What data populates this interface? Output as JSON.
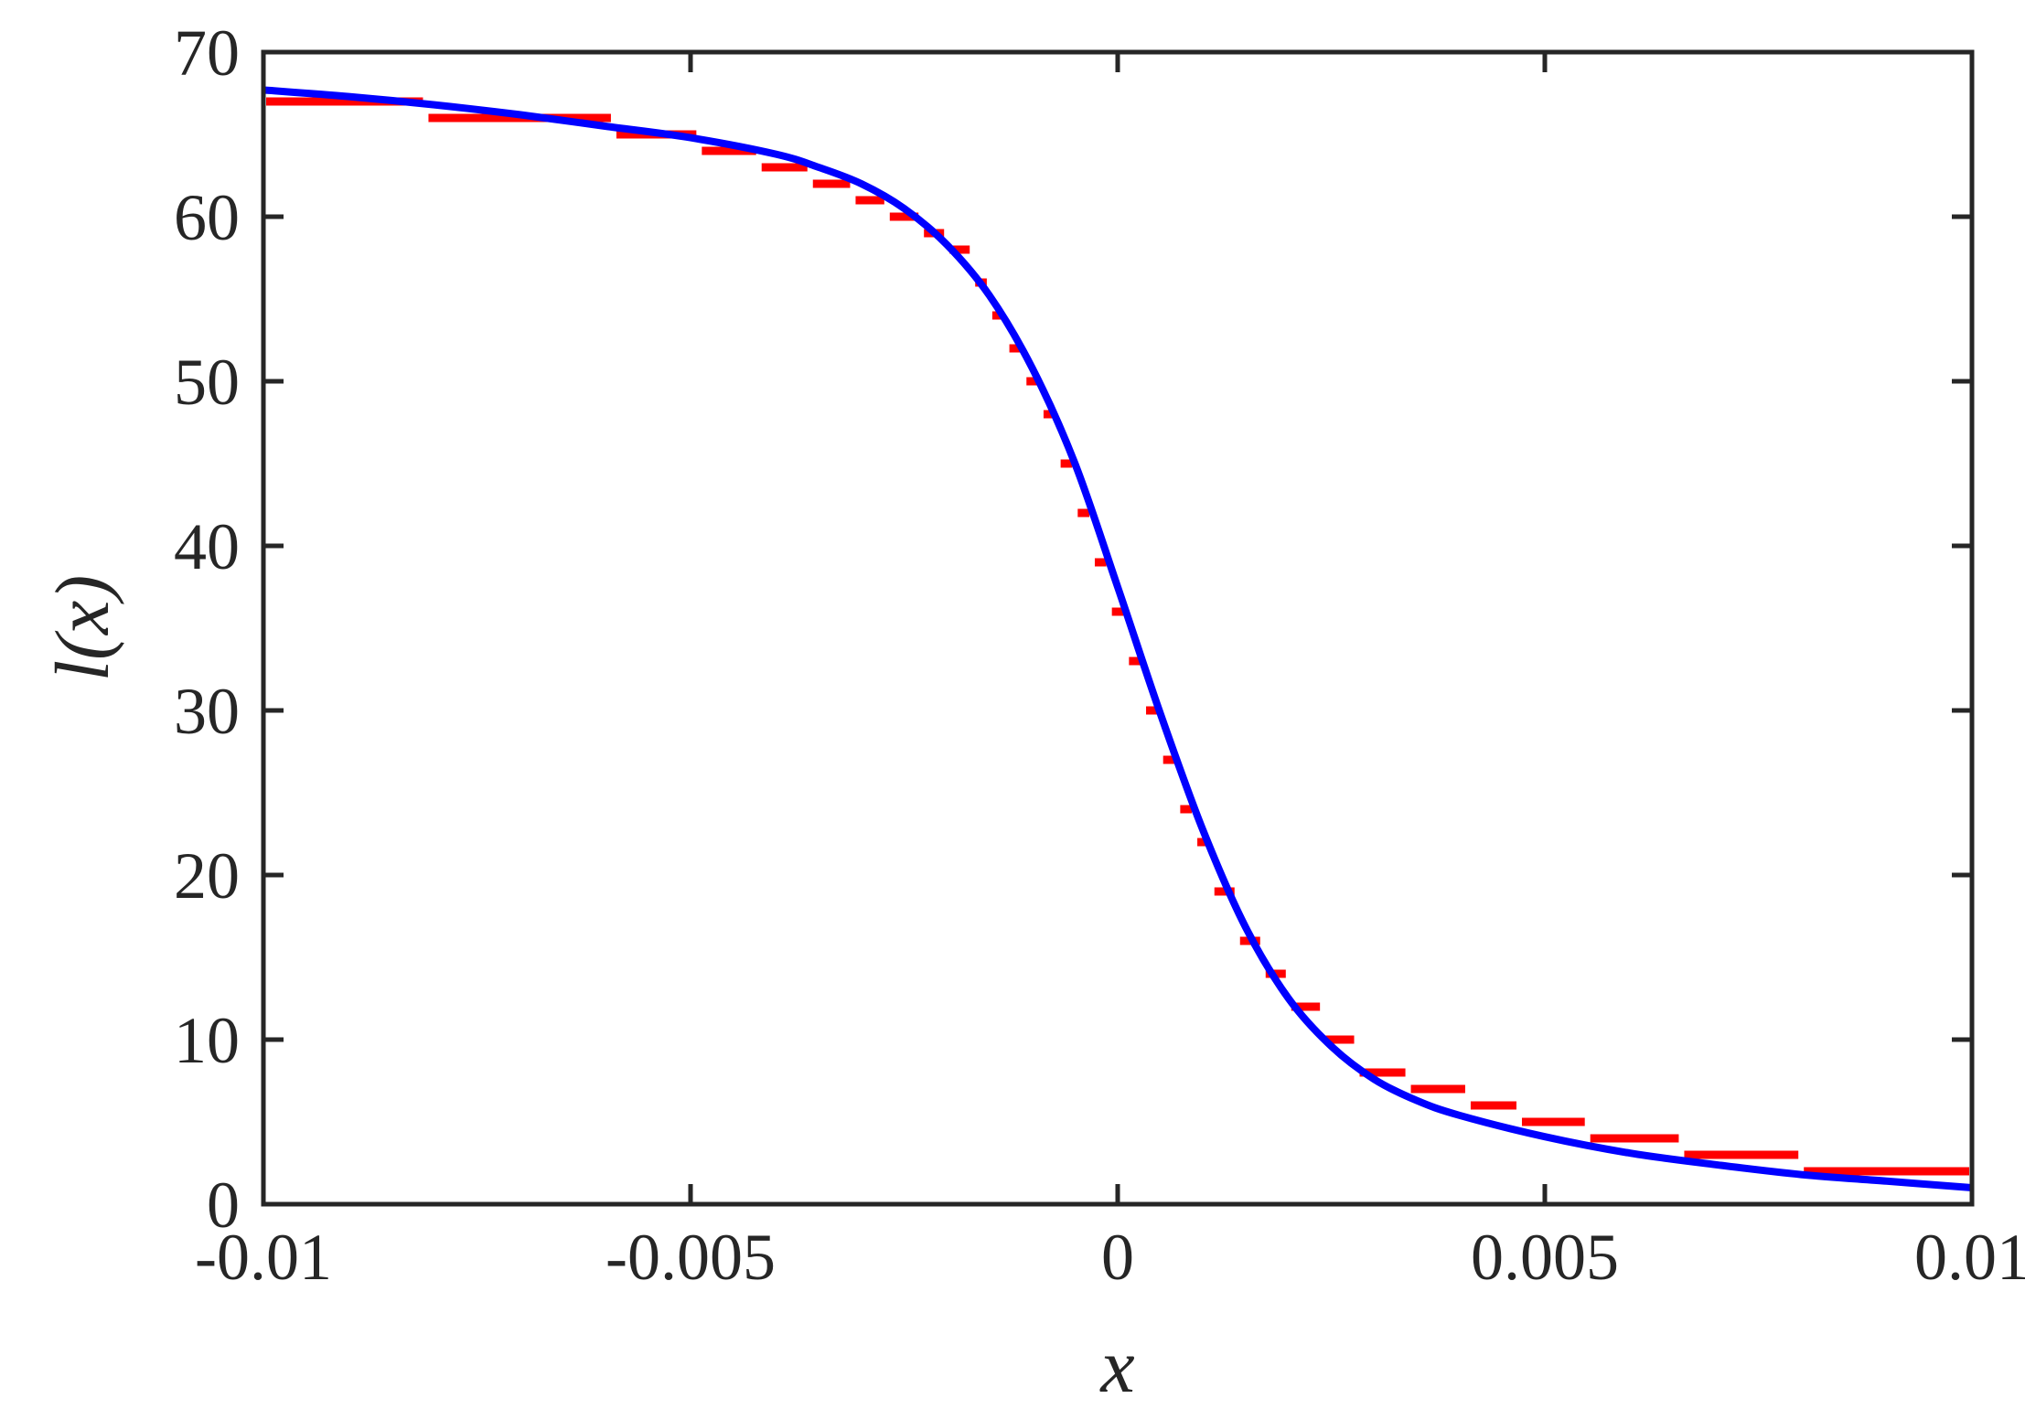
{
  "chart_data": {
    "type": "line",
    "title": "",
    "xlabel": "x",
    "ylabel": "l(x)",
    "xlim": [
      -0.01,
      0.01
    ],
    "ylim": [
      0,
      70
    ],
    "grid": false,
    "legend": "none",
    "x_ticks": [
      {
        "value": -0.01,
        "label": "-0.01"
      },
      {
        "value": -0.005,
        "label": "-0.005"
      },
      {
        "value": 0,
        "label": "0"
      },
      {
        "value": 0.005,
        "label": "0.005"
      },
      {
        "value": 0.01,
        "label": "0.01"
      }
    ],
    "y_ticks": [
      {
        "value": 0,
        "label": "0"
      },
      {
        "value": 10,
        "label": "10"
      },
      {
        "value": 20,
        "label": "20"
      },
      {
        "value": 30,
        "label": "30"
      },
      {
        "value": 40,
        "label": "40"
      },
      {
        "value": 50,
        "label": "50"
      },
      {
        "value": 60,
        "label": "60"
      },
      {
        "value": 70,
        "label": "70"
      }
    ],
    "series": [
      {
        "style": "step-dashes",
        "color": "#ff0000",
        "x": [
          -0.01,
          -0.0081,
          -0.0059,
          -0.0049,
          -0.0042,
          -0.0036,
          -0.0031,
          -0.0027,
          -0.0023,
          -0.002,
          -0.0017,
          -0.0015,
          -0.0013,
          -0.0011,
          -0.0009,
          -0.0007,
          -0.0005,
          -0.0003,
          -0.0001,
          0.0001,
          0.0003,
          0.0005,
          0.0007,
          0.0009,
          0.0011,
          0.0014,
          0.0017,
          0.002,
          0.0024,
          0.0028,
          0.0034,
          0.0041,
          0.0047,
          0.0055,
          0.0066,
          0.008,
          0.01
        ],
        "y": [
          67,
          66,
          65,
          64,
          63,
          62,
          61,
          60,
          59,
          58,
          56,
          54,
          52,
          50,
          48,
          45,
          42,
          39,
          36,
          33,
          30,
          27,
          24,
          22,
          19,
          16,
          14,
          12,
          10,
          8,
          7,
          6,
          5,
          4,
          3,
          2,
          1
        ]
      },
      {
        "style": "solid",
        "color": "#0000ff",
        "x": [
          -0.01,
          -0.009,
          -0.008,
          -0.007,
          -0.006,
          -0.005,
          -0.004,
          -0.0035,
          -0.003,
          -0.0025,
          -0.002,
          -0.0015,
          -0.001,
          -0.0005,
          0,
          0.0005,
          0.001,
          0.0015,
          0.002,
          0.0025,
          0.003,
          0.0035,
          0.004,
          0.005,
          0.006,
          0.007,
          0.008,
          0.009,
          0.01
        ],
        "y": [
          67.7,
          67.3,
          66.8,
          66.2,
          65.5,
          64.8,
          63.8,
          63.0,
          62.0,
          60.5,
          58.3,
          55.2,
          50.8,
          45.0,
          37.5,
          29.8,
          22.7,
          16.8,
          12.5,
          9.6,
          7.6,
          6.3,
          5.4,
          4.1,
          3.1,
          2.4,
          1.8,
          1.4,
          1.0
        ]
      }
    ]
  }
}
